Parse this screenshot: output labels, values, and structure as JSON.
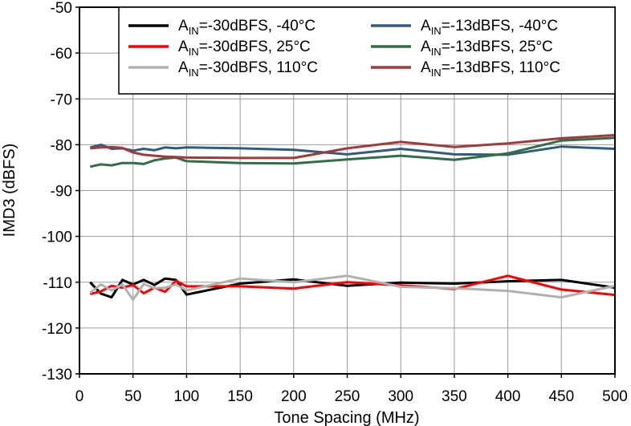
{
  "chart_data": {
    "type": "line",
    "xlabel": "Tone Spacing (MHz)",
    "ylabel": "IMD3 (dBFS)",
    "xlim": [
      0,
      500
    ],
    "ylim": [
      -130,
      -50
    ],
    "xticks": [
      0,
      50,
      100,
      150,
      200,
      250,
      300,
      350,
      400,
      450,
      500
    ],
    "yticks": [
      -50,
      -60,
      -70,
      -80,
      -90,
      -100,
      -110,
      -120,
      -130
    ],
    "grid": true,
    "legend_position": "top-right",
    "series": [
      {
        "name": "AIN=-30dBFS, -40°C",
        "label_main": "A",
        "label_sub": "IN",
        "label_rest": "=-30dBFS, -40°C",
        "color": "#000000",
        "x": [
          10,
          20,
          30,
          40,
          50,
          60,
          70,
          80,
          90,
          100,
          150,
          200,
          250,
          300,
          350,
          400,
          450,
          500
        ],
        "y": [
          -110,
          -112.5,
          -113.3,
          -109.5,
          -110.5,
          -109.5,
          -110.6,
          -109.2,
          -109.5,
          -112.7,
          -110.3,
          -109.4,
          -110.8,
          -110.1,
          -110.3,
          -109.8,
          -109.5,
          -111.2
        ]
      },
      {
        "name": "AIN=-30dBFS, 25°C",
        "label_main": "A",
        "label_sub": "IN",
        "label_rest": "=-30dBFS, 25°C",
        "color": "#ff0000",
        "x": [
          10,
          20,
          30,
          40,
          50,
          60,
          70,
          80,
          90,
          100,
          150,
          200,
          250,
          300,
          350,
          400,
          450,
          500
        ],
        "y": [
          -112.6,
          -112,
          -110.8,
          -111.2,
          -110.6,
          -112.4,
          -111.2,
          -112.1,
          -109.7,
          -110.9,
          -110.9,
          -111.4,
          -110,
          -110.7,
          -111.5,
          -108.6,
          -111.6,
          -112.8
        ]
      },
      {
        "name": "AIN=-30dBFS, 110°C",
        "label_main": "A",
        "label_sub": "IN",
        "label_rest": "=-30dBFS, 110°C",
        "color": "#b0b0b0",
        "x": [
          10,
          20,
          30,
          40,
          50,
          60,
          70,
          80,
          90,
          100,
          150,
          200,
          250,
          300,
          350,
          400,
          450,
          500
        ],
        "y": [
          -112.3,
          -110.5,
          -111.8,
          -110.5,
          -113.8,
          -110.4,
          -111.3,
          -111.2,
          -110.5,
          -111.8,
          -109.2,
          -110,
          -108.6,
          -111,
          -111.3,
          -111.9,
          -113.3,
          -110.8
        ]
      },
      {
        "name": "AIN=-13dBFS, -40°C",
        "label_main": "A",
        "label_sub": "IN",
        "label_rest": "=-13dBFS, -40°C",
        "color": "#2f5c7f",
        "x": [
          10,
          20,
          30,
          40,
          50,
          60,
          70,
          80,
          90,
          100,
          150,
          200,
          250,
          300,
          350,
          400,
          450,
          500
        ],
        "y": [
          -80.6,
          -80,
          -80.9,
          -80.8,
          -81.3,
          -80.9,
          -81.2,
          -80.6,
          -80.8,
          -80.6,
          -80.8,
          -81.1,
          -82.1,
          -80.9,
          -82.1,
          -82.2,
          -80.4,
          -80.9
        ]
      },
      {
        "name": "AIN=-13dBFS, 25°C",
        "label_main": "A",
        "label_sub": "IN",
        "label_rest": "=-13dBFS, 25°C",
        "color": "#2f6e46",
        "x": [
          10,
          20,
          30,
          40,
          50,
          60,
          70,
          80,
          90,
          100,
          150,
          200,
          250,
          300,
          350,
          400,
          450,
          500
        ],
        "y": [
          -84.8,
          -84.3,
          -84.5,
          -84,
          -84,
          -84.2,
          -83.4,
          -83,
          -82.8,
          -83.6,
          -84,
          -84.1,
          -83.2,
          -82.4,
          -83.3,
          -81.9,
          -79.1,
          -78.5
        ]
      },
      {
        "name": "AIN=-13dBFS, 110°C",
        "label_main": "A",
        "label_sub": "IN",
        "label_rest": "=-13dBFS, 110°C",
        "color": "#a33a3a",
        "x": [
          10,
          20,
          30,
          40,
          50,
          60,
          70,
          80,
          90,
          100,
          150,
          200,
          250,
          300,
          350,
          400,
          450,
          500
        ],
        "y": [
          -80.8,
          -80.6,
          -80.5,
          -80.7,
          -81.7,
          -82.2,
          -82.4,
          -82.6,
          -82.7,
          -82.8,
          -82.9,
          -82.9,
          -80.8,
          -79.4,
          -80.5,
          -79.7,
          -78.6,
          -77.9
        ]
      }
    ]
  }
}
